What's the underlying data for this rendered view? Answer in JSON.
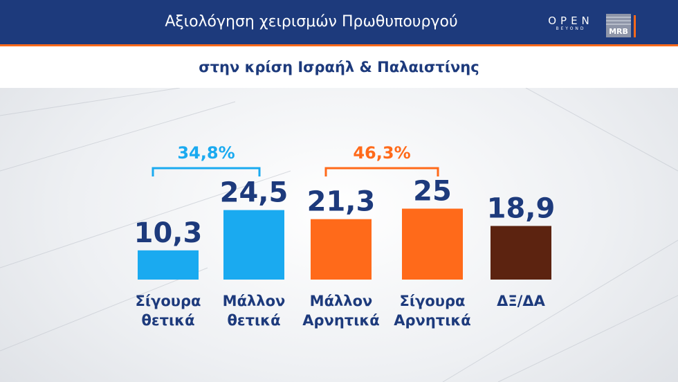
{
  "header": {
    "title": "Αξιολόγηση χειρισμών Πρωθυπουργού",
    "subtitle": "στην κρίση Ισραήλ & Παλαιστίνης",
    "logo_open_text": "OPEN",
    "logo_open_sub": "BEYOND",
    "logo_mrb": "MRB"
  },
  "colors": {
    "navy": "#1d3a7c",
    "light_blue": "#1aaaf0",
    "orange": "#ff6a1a",
    "brown": "#5c2310"
  },
  "chart_data": {
    "type": "bar",
    "categories": [
      [
        "Σίγουρα",
        "θετικά"
      ],
      [
        "Μάλλον",
        "θετικά"
      ],
      [
        "Μάλλον",
        "Αρνητικά"
      ],
      [
        "Σίγουρα",
        "Αρνητικά"
      ],
      [
        "ΔΞ/ΔΑ"
      ]
    ],
    "values": [
      10.3,
      24.5,
      21.3,
      25,
      18.9
    ],
    "value_labels": [
      "10,3",
      "24,5",
      "21,3",
      "25",
      "18,9"
    ],
    "bar_colors": [
      "#1aaaf0",
      "#1aaaf0",
      "#ff6a1a",
      "#ff6a1a",
      "#5c2310"
    ],
    "groups": [
      {
        "label": "34,8%",
        "value": 34.8,
        "from": 0,
        "to": 1,
        "color": "#1aaaf0"
      },
      {
        "label": "46,3%",
        "value": 46.3,
        "from": 2,
        "to": 3,
        "color": "#ff6a1a"
      }
    ],
    "title": "",
    "xlabel": "",
    "ylabel": "",
    "ylim": [
      0,
      25
    ]
  }
}
